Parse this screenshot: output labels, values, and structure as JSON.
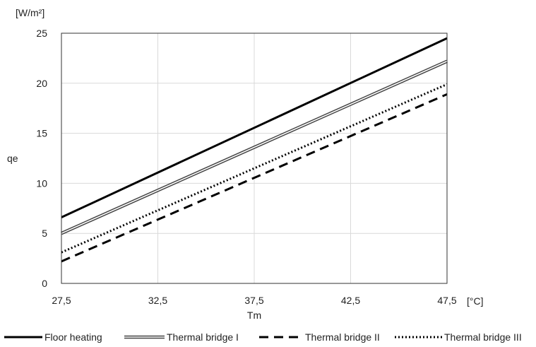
{
  "chart_data": {
    "type": "line",
    "xlabel": "Tm",
    "ylabel": "qe",
    "y_unit": "[W/m²]",
    "x_unit": "[°C]",
    "xlim": [
      27.5,
      47.5
    ],
    "ylim": [
      0,
      25
    ],
    "x_ticks": [
      "27,5",
      "32,5",
      "37,5",
      "42,5",
      "47,5"
    ],
    "y_ticks": [
      "0",
      "5",
      "10",
      "15",
      "20",
      "25"
    ],
    "grid": true,
    "legend_position": "bottom",
    "x": [
      27.5,
      47.5
    ],
    "series": [
      {
        "name": "Floor heating",
        "style": "solid-thick",
        "values": [
          6.6,
          24.5
        ]
      },
      {
        "name": "Thermal bridge I",
        "style": "double",
        "values": [
          5.0,
          22.2
        ]
      },
      {
        "name": "Thermal bridge II",
        "style": "dashed",
        "values": [
          2.2,
          18.9
        ]
      },
      {
        "name": "Thermal bridge III",
        "style": "dotted",
        "values": [
          3.1,
          19.9
        ]
      }
    ]
  }
}
